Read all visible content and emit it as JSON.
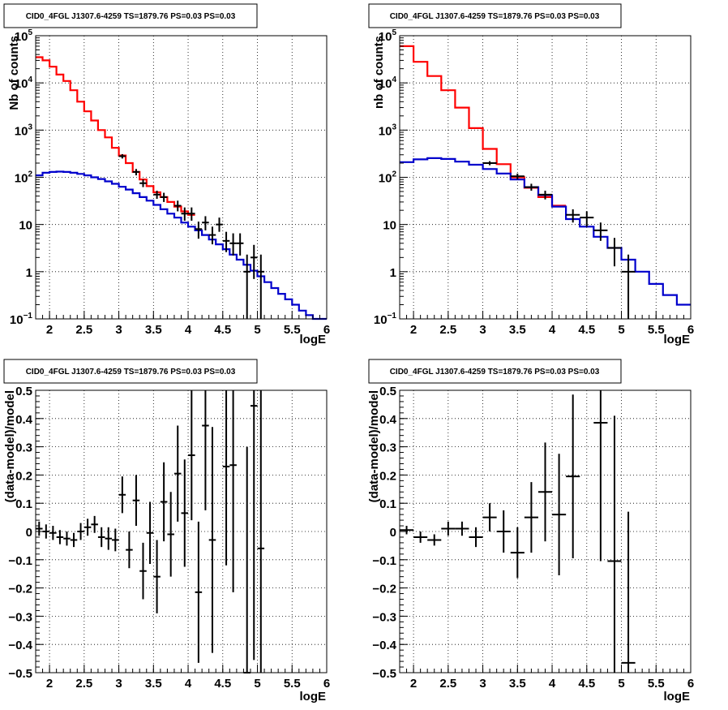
{
  "panels": [
    {
      "title": "CID0_4FGL J1307.6-4259 TS=1879.76 PS=0.03 PS=0.03",
      "xlabel": "logE",
      "ylabel": "Nb of counts",
      "chart_data": {
        "type": "line",
        "xlim": [
          1.8,
          6.0
        ],
        "ylim": [
          0.1,
          100000
        ],
        "yscale": "log",
        "grid": true,
        "x_ticks": [
          "2",
          "2.5",
          "3",
          "3.5",
          "4",
          "4.5",
          "5",
          "5.5",
          "6"
        ],
        "series": [
          {
            "role": "model-total",
            "color": "#ff0000",
            "kind": "step",
            "bin_edges": [
              1.8,
              1.9,
              2.0,
              2.1,
              2.2,
              2.3,
              2.4,
              2.5,
              2.6,
              2.7,
              2.8,
              2.9,
              3.0,
              3.1,
              3.2,
              3.3,
              3.4,
              3.5,
              3.6,
              3.7,
              3.8,
              3.9,
              4.0,
              4.1
            ],
            "values": [
              35000,
              30000,
              22000,
              15000,
              11000,
              7000,
              4000,
              2500,
              1600,
              1000,
              700,
              420,
              290,
              200,
              130,
              90,
              65,
              48,
              38,
              30,
              24,
              19,
              16
            ]
          },
          {
            "role": "model-background",
            "color": "#0000cc",
            "kind": "step",
            "bin_edges": [
              1.8,
              1.9,
              2.0,
              2.1,
              2.2,
              2.3,
              2.4,
              2.5,
              2.6,
              2.7,
              2.8,
              2.9,
              3.0,
              3.1,
              3.2,
              3.3,
              3.4,
              3.5,
              3.6,
              3.7,
              3.8,
              3.9,
              4.0,
              4.1,
              4.2,
              4.3,
              4.4,
              4.5,
              4.6,
              4.7,
              4.8,
              4.9,
              5.0,
              5.1,
              5.2,
              5.3,
              5.4,
              5.5,
              5.6,
              5.7,
              5.8,
              5.9,
              6.0
            ],
            "values": [
              110,
              125,
              130,
              132,
              130,
              125,
              118,
              110,
              100,
              92,
              82,
              73,
              63,
              55,
              46,
              38,
              32,
              26,
              21,
              17,
              14,
              11,
              9,
              7.5,
              6,
              4.8,
              3.8,
              3,
              2.3,
              1.8,
              1.4,
              1.05,
              0.8,
              0.6,
              0.45,
              0.34,
              0.26,
              0.2,
              0.15,
              0.12,
              0.1,
              0.085
            ]
          },
          {
            "role": "data",
            "color": "#000000",
            "kind": "errorbar",
            "points": [
              {
                "x": 3.05,
                "y": 280,
                "dx": 0.05,
                "lo": 250,
                "hi": 310
              },
              {
                "x": 3.25,
                "y": 130,
                "dx": 0.05,
                "lo": 110,
                "hi": 150
              },
              {
                "x": 3.35,
                "y": 75,
                "dx": 0.05,
                "lo": 62,
                "hi": 90
              },
              {
                "x": 3.55,
                "y": 43,
                "dx": 0.05,
                "lo": 35,
                "hi": 52
              },
              {
                "x": 3.65,
                "y": 38,
                "dx": 0.05,
                "lo": 30,
                "hi": 47
              },
              {
                "x": 3.85,
                "y": 25,
                "dx": 0.05,
                "lo": 19,
                "hi": 32
              },
              {
                "x": 3.95,
                "y": 17,
                "dx": 0.05,
                "lo": 12,
                "hi": 23
              },
              {
                "x": 4.05,
                "y": 17,
                "dx": 0.05,
                "lo": 12,
                "hi": 23
              },
              {
                "x": 4.15,
                "y": 8,
                "dx": 0.05,
                "lo": 5,
                "hi": 11.5
              },
              {
                "x": 4.25,
                "y": 11,
                "dx": 0.05,
                "lo": 7.5,
                "hi": 15
              },
              {
                "x": 4.35,
                "y": 6,
                "dx": 0.05,
                "lo": 3.8,
                "hi": 9
              },
              {
                "x": 4.45,
                "y": 10,
                "dx": 0.05,
                "lo": 7,
                "hi": 14
              },
              {
                "x": 4.55,
                "y": 4.5,
                "dx": 0.05,
                "lo": 2.6,
                "hi": 7
              },
              {
                "x": 4.65,
                "y": 4,
                "dx": 0.05,
                "lo": 2.2,
                "hi": 6.5
              },
              {
                "x": 4.75,
                "y": 4,
                "dx": 0.05,
                "lo": 2.2,
                "hi": 6.5
              },
              {
                "x": 4.85,
                "y": 1,
                "dx": 0.05,
                "lo": 0.1,
                "hi": 2.3
              },
              {
                "x": 4.95,
                "y": 2,
                "dx": 0.05,
                "lo": 0.7,
                "hi": 3.7
              },
              {
                "x": 5.05,
                "y": 1,
                "dx": 0.05,
                "lo": 0.1,
                "hi": 2.3
              }
            ]
          }
        ]
      }
    },
    {
      "title": "CID0_4FGL J1307.6-4259 TS=1879.76 PS=0.03 PS=0.03",
      "xlabel": "logE",
      "ylabel": "nb of counts",
      "chart_data": {
        "type": "line",
        "xlim": [
          1.8,
          6.0
        ],
        "ylim": [
          0.1,
          100000
        ],
        "yscale": "log",
        "grid": true,
        "x_ticks": [
          "2",
          "2.5",
          "3",
          "3.5",
          "4",
          "4.5",
          "5",
          "5.5",
          "6"
        ],
        "series": [
          {
            "role": "model-total",
            "color": "#ff0000",
            "kind": "step",
            "bin_edges": [
              1.8,
              2.0,
              2.2,
              2.4,
              2.6,
              2.8,
              3.0,
              3.2,
              3.4,
              3.6,
              3.8,
              4.0,
              4.2
            ],
            "values": [
              60000,
              28000,
              14000,
              7000,
              3000,
              1100,
              400,
              190,
              100,
              60,
              38,
              25
            ]
          },
          {
            "role": "model-background",
            "color": "#0000cc",
            "kind": "step",
            "bin_edges": [
              1.8,
              2.0,
              2.2,
              2.4,
              2.6,
              2.8,
              3.0,
              3.2,
              3.4,
              3.6,
              3.8,
              4.0,
              4.2,
              4.4,
              4.6,
              4.8,
              5.0,
              5.2,
              5.4,
              5.6,
              5.8,
              6.0
            ],
            "values": [
              210,
              240,
              255,
              245,
              215,
              185,
              150,
              120,
              90,
              62,
              42,
              24,
              13,
              9,
              5.5,
              3.2,
              1.8,
              1.0,
              0.55,
              0.32,
              0.2
            ]
          },
          {
            "role": "data",
            "color": "#000000",
            "kind": "errorbar",
            "points": [
              {
                "x": 3.1,
                "y": 200,
                "dx": 0.1,
                "lo": 180,
                "hi": 220
              },
              {
                "x": 3.5,
                "y": 105,
                "dx": 0.1,
                "lo": 90,
                "hi": 120
              },
              {
                "x": 3.7,
                "y": 62,
                "dx": 0.1,
                "lo": 52,
                "hi": 73
              },
              {
                "x": 3.9,
                "y": 43,
                "dx": 0.1,
                "lo": 34,
                "hi": 52
              },
              {
                "x": 4.3,
                "y": 16,
                "dx": 0.1,
                "lo": 11,
                "hi": 21
              },
              {
                "x": 4.5,
                "y": 14,
                "dx": 0.1,
                "lo": 9,
                "hi": 19
              },
              {
                "x": 4.7,
                "y": 7.5,
                "dx": 0.1,
                "lo": 4.5,
                "hi": 11
              },
              {
                "x": 4.9,
                "y": 3.2,
                "dx": 0.1,
                "lo": 1.3,
                "hi": 5.2
              },
              {
                "x": 5.1,
                "y": 1,
                "dx": 0.1,
                "lo": 0.1,
                "hi": 2.3
              }
            ]
          }
        ]
      }
    },
    {
      "title": "CID0_4FGL J1307.6-4259 TS=1879.76 PS=0.03 PS=0.03",
      "xlabel": "logE",
      "ylabel": "(data-model)/model",
      "chart_data": {
        "type": "scatter",
        "xlim": [
          1.8,
          6.0
        ],
        "ylim": [
          -0.5,
          0.5
        ],
        "yscale": "linear",
        "grid": true,
        "x_ticks": [
          "2",
          "2.5",
          "3",
          "3.5",
          "4",
          "4.5",
          "5",
          "5.5",
          "6"
        ],
        "y_ticks": [
          "-0.5",
          "-0.4",
          "-0.3",
          "-0.2",
          "-0.1",
          "0",
          "0.1",
          "0.2",
          "0.3",
          "0.4",
          "0.5"
        ],
        "series": [
          {
            "role": "residual",
            "color": "#000000",
            "kind": "errorbar",
            "points": [
              {
                "x": 1.85,
                "y": 0.01,
                "dx": 0.05,
                "err": 0.025
              },
              {
                "x": 1.95,
                "y": 0.0,
                "dx": 0.05,
                "err": 0.025
              },
              {
                "x": 2.05,
                "y": -0.005,
                "dx": 0.05,
                "err": 0.025
              },
              {
                "x": 2.15,
                "y": -0.02,
                "dx": 0.05,
                "err": 0.025
              },
              {
                "x": 2.25,
                "y": -0.025,
                "dx": 0.05,
                "err": 0.025
              },
              {
                "x": 2.35,
                "y": -0.03,
                "dx": 0.05,
                "err": 0.025
              },
              {
                "x": 2.45,
                "y": 0.0,
                "dx": 0.05,
                "err": 0.03
              },
              {
                "x": 2.55,
                "y": 0.015,
                "dx": 0.05,
                "err": 0.03
              },
              {
                "x": 2.65,
                "y": 0.025,
                "dx": 0.05,
                "err": 0.03
              },
              {
                "x": 2.75,
                "y": -0.02,
                "dx": 0.05,
                "err": 0.035
              },
              {
                "x": 2.85,
                "y": -0.025,
                "dx": 0.05,
                "err": 0.04
              },
              {
                "x": 2.95,
                "y": -0.03,
                "dx": 0.05,
                "err": 0.04
              },
              {
                "x": 3.05,
                "y": 0.13,
                "dx": 0.05,
                "err": 0.065
              },
              {
                "x": 3.15,
                "y": -0.065,
                "dx": 0.05,
                "err": 0.065
              },
              {
                "x": 3.25,
                "y": 0.11,
                "dx": 0.05,
                "err": 0.09
              },
              {
                "x": 3.35,
                "y": -0.14,
                "dx": 0.05,
                "err": 0.1
              },
              {
                "x": 3.45,
                "y": -0.005,
                "dx": 0.05,
                "err": 0.11
              },
              {
                "x": 3.55,
                "y": -0.16,
                "dx": 0.05,
                "err": 0.13
              },
              {
                "x": 3.65,
                "y": 0.105,
                "dx": 0.05,
                "err": 0.14
              },
              {
                "x": 3.75,
                "y": -0.01,
                "dx": 0.05,
                "err": 0.15
              },
              {
                "x": 3.85,
                "y": 0.205,
                "dx": 0.05,
                "err": 0.17
              },
              {
                "x": 3.95,
                "y": 0.065,
                "dx": 0.05,
                "err": 0.19
              },
              {
                "x": 4.05,
                "y": 0.27,
                "dx": 0.05,
                "err": 0.23
              },
              {
                "x": 4.15,
                "y": -0.215,
                "dx": 0.05,
                "err": 0.25
              },
              {
                "x": 4.25,
                "y": 0.375,
                "dx": 0.05,
                "err": 0.3
              },
              {
                "x": 4.35,
                "y": -0.03,
                "dx": 0.05,
                "err": 0.4
              },
              {
                "x": 4.55,
                "y": 0.23,
                "dx": 0.05,
                "err": 0.35
              },
              {
                "x": 4.65,
                "y": 0.235,
                "dx": 0.05,
                "err": 0.45
              },
              {
                "x": 4.85,
                "y": -0.5,
                "dx": 0.05,
                "err": 0.8
              },
              {
                "x": 4.95,
                "y": 0.445,
                "dx": 0.05,
                "err": 0.9
              },
              {
                "x": 5.05,
                "y": -0.06,
                "dx": 0.05,
                "err": 1.0
              }
            ]
          }
        ]
      }
    },
    {
      "title": "CID0_4FGL J1307.6-4259 TS=1879.76 PS=0.03 PS=0.03",
      "xlabel": "logE",
      "ylabel": "(data-model)/model",
      "chart_data": {
        "type": "scatter",
        "xlim": [
          1.8,
          6.0
        ],
        "ylim": [
          -0.5,
          0.5
        ],
        "yscale": "linear",
        "grid": true,
        "x_ticks": [
          "2",
          "2.5",
          "3",
          "3.5",
          "4",
          "4.5",
          "5",
          "5.5",
          "6"
        ],
        "y_ticks": [
          "-0.5",
          "-0.4",
          "-0.3",
          "-0.2",
          "-0.1",
          "0",
          "0.1",
          "0.2",
          "0.3",
          "0.4",
          "0.5"
        ],
        "series": [
          {
            "role": "residual",
            "color": "#000000",
            "kind": "errorbar",
            "points": [
              {
                "x": 1.9,
                "y": 0.005,
                "dx": 0.1,
                "err": 0.015
              },
              {
                "x": 2.1,
                "y": -0.02,
                "dx": 0.1,
                "err": 0.02
              },
              {
                "x": 2.3,
                "y": -0.03,
                "dx": 0.1,
                "err": 0.02
              },
              {
                "x": 2.5,
                "y": 0.01,
                "dx": 0.1,
                "err": 0.025
              },
              {
                "x": 2.7,
                "y": 0.01,
                "dx": 0.1,
                "err": 0.025
              },
              {
                "x": 2.9,
                "y": -0.02,
                "dx": 0.1,
                "err": 0.035
              },
              {
                "x": 3.1,
                "y": 0.05,
                "dx": 0.1,
                "err": 0.05
              },
              {
                "x": 3.3,
                "y": 0.0,
                "dx": 0.1,
                "err": 0.075
              },
              {
                "x": 3.5,
                "y": -0.075,
                "dx": 0.1,
                "err": 0.09
              },
              {
                "x": 3.7,
                "y": 0.05,
                "dx": 0.1,
                "err": 0.125
              },
              {
                "x": 3.9,
                "y": 0.14,
                "dx": 0.1,
                "err": 0.175
              },
              {
                "x": 4.1,
                "y": 0.06,
                "dx": 0.1,
                "err": 0.215
              },
              {
                "x": 4.3,
                "y": 0.195,
                "dx": 0.1,
                "err": 0.29
              },
              {
                "x": 4.7,
                "y": 0.385,
                "dx": 0.1,
                "err": 0.49
              },
              {
                "x": 4.9,
                "y": -0.105,
                "dx": 0.1,
                "err": 0.515
              },
              {
                "x": 5.1,
                "y": -0.465,
                "dx": 0.1,
                "err": 0.535
              }
            ]
          }
        ]
      }
    }
  ]
}
